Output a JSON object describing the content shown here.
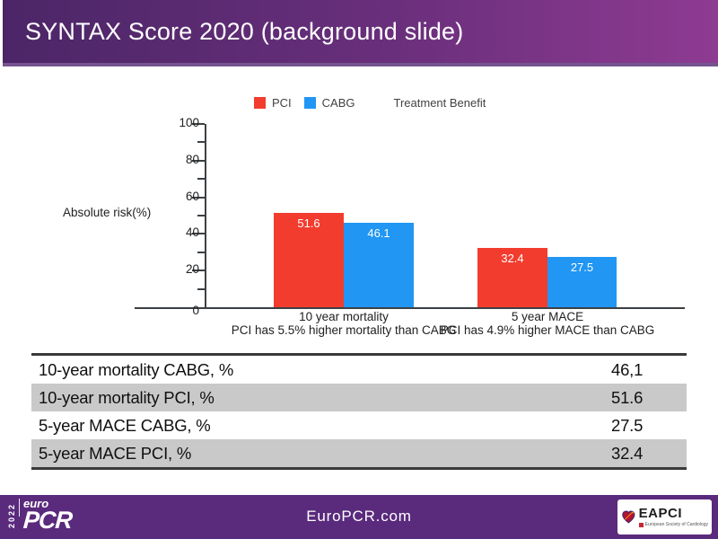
{
  "slide": {
    "title": "SYNTAX Score 2020 (background slide)"
  },
  "chart_data": {
    "type": "bar",
    "categories": [
      "10 year mortality",
      "5 year MACE"
    ],
    "category_notes": [
      "PCI has 5.5% higher mortality than CABG",
      "PCI has 4.9% higher MACE than CABG"
    ],
    "series": [
      {
        "name": "PCI",
        "color": "#F23C2E",
        "values": [
          51.6,
          32.4
        ]
      },
      {
        "name": "CABG",
        "color": "#2196F3",
        "values": [
          46.1,
          27.5
        ]
      }
    ],
    "annotations": [
      "Treatment Benefit"
    ],
    "ylabel": "Absolute risk(%)",
    "ylim": [
      0,
      100
    ],
    "yticks": [
      0,
      20,
      40,
      60,
      80,
      100
    ],
    "grid": false,
    "legend_position": "top"
  },
  "table": {
    "rows": [
      {
        "label": "10-year mortality CABG, %",
        "value": "46,1"
      },
      {
        "label": "10-year mortality PCI, %",
        "value": "51.6"
      },
      {
        "label": "5-year MACE CABG, %",
        "value": "27.5"
      },
      {
        "label": "5-year MACE PCI, %",
        "value": "32.4"
      }
    ],
    "stripe_color": "#C9C9C9"
  },
  "footer": {
    "url": "EuroPCR.com",
    "year": "2022",
    "logo_top": "euro",
    "logo_main": "PCR",
    "eapci_name": "EAPCI",
    "eapci_subtitle": "European Society of Cardiology"
  },
  "colors": {
    "header_gradient_start": "#4B2667",
    "header_gradient_end": "#8E3B92",
    "footer_purple": "#5A2A7D",
    "bar_pci": "#F23C2E",
    "bar_cabg": "#2196F3",
    "axis": "#3c4043"
  }
}
